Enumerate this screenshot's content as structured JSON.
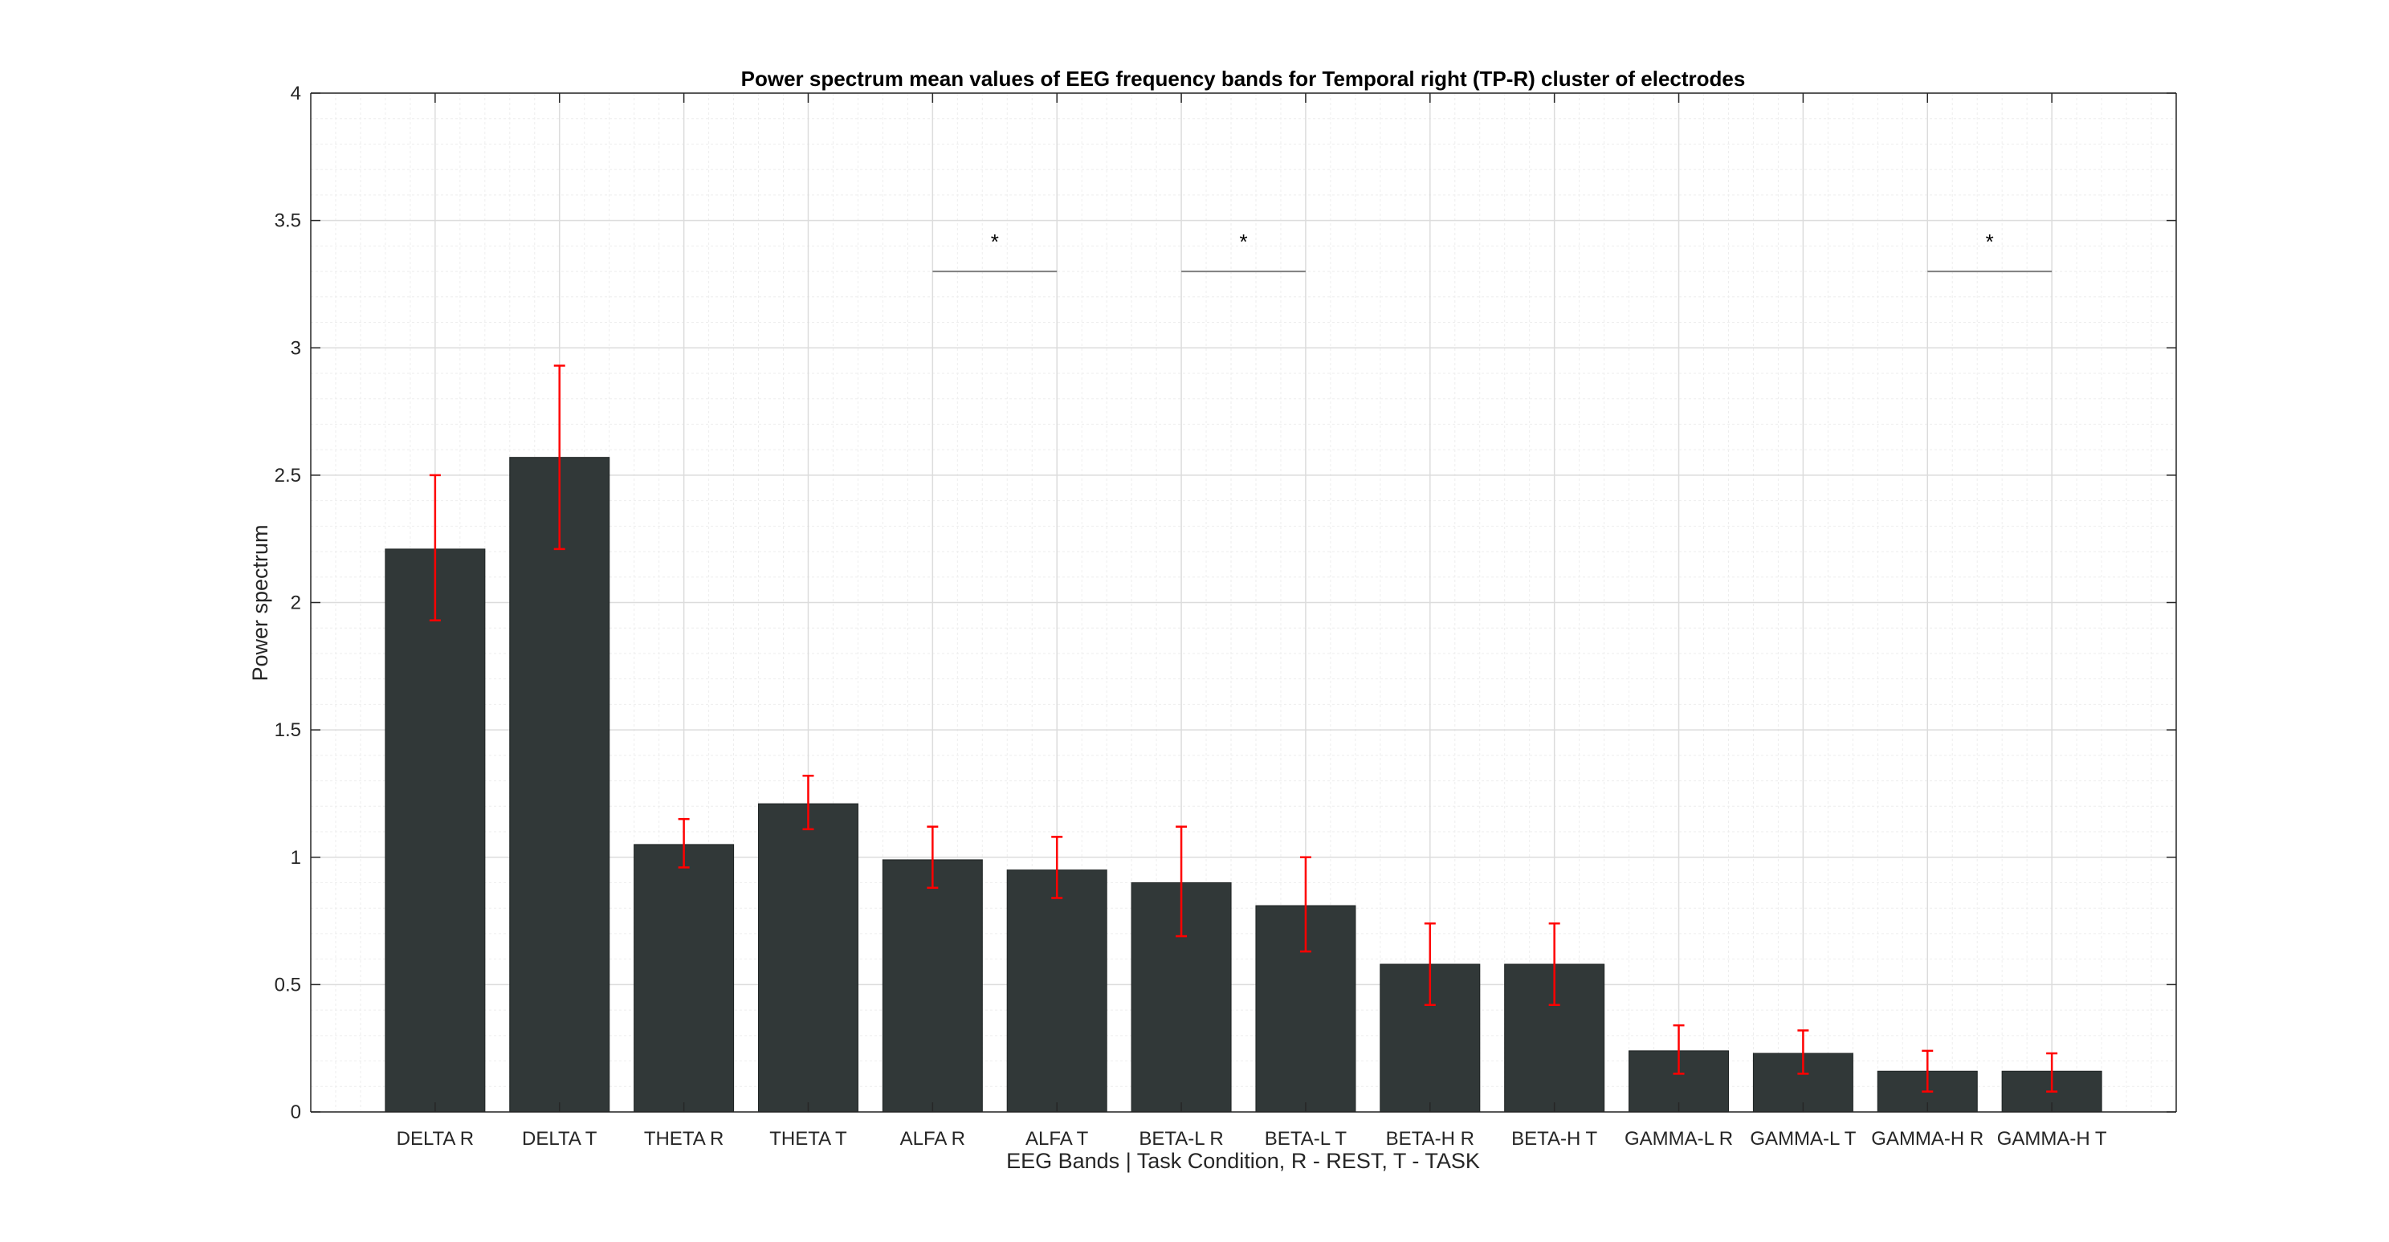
{
  "chart_data": {
    "type": "bar",
    "title": "Power spectrum mean values of EEG frequency bands for Temporal right (TP-R) cluster of electrodes",
    "xlabel": "EEG Bands | Task Condition, R - REST, T - TASK",
    "ylabel": "Power spectrum",
    "ylim": [
      0,
      4
    ],
    "yticks": [
      0,
      0.5,
      1,
      1.5,
      2,
      2.5,
      3,
      3.5,
      4
    ],
    "ytick_labels": [
      "0",
      "0.5",
      "1",
      "1.5",
      "2",
      "2.5",
      "3",
      "3.5",
      "4"
    ],
    "grid": true,
    "minor_grid": true,
    "bar_color": "#313838",
    "error_color": "#ff0000",
    "significance_color": "#7f7f7f",
    "categories": [
      "DELTA R",
      "DELTA T",
      "THETA R",
      "THETA T",
      "ALFA R",
      "ALFA T",
      "BETA-L R",
      "BETA-L T",
      "BETA-H R",
      "BETA-H T",
      "GAMMA-L R",
      "GAMMA-L T",
      "GAMMA-H R",
      "GAMMA-H T"
    ],
    "values": [
      2.21,
      2.57,
      1.05,
      1.21,
      0.99,
      0.95,
      0.9,
      0.81,
      0.58,
      0.58,
      0.24,
      0.23,
      0.16,
      0.16
    ],
    "error_low": [
      1.93,
      2.21,
      0.96,
      1.11,
      0.88,
      0.84,
      0.69,
      0.63,
      0.42,
      0.42,
      0.15,
      0.15,
      0.08,
      0.08
    ],
    "error_high": [
      2.5,
      2.93,
      1.15,
      1.32,
      1.12,
      1.08,
      1.12,
      1.0,
      0.74,
      0.74,
      0.34,
      0.32,
      0.24,
      0.23
    ],
    "significance": [
      {
        "pair": [
          4,
          5
        ],
        "y": 3.3,
        "label": "*"
      },
      {
        "pair": [
          6,
          7
        ],
        "y": 3.3,
        "label": "*"
      },
      {
        "pair": [
          12,
          13
        ],
        "y": 3.3,
        "label": "*"
      }
    ]
  }
}
